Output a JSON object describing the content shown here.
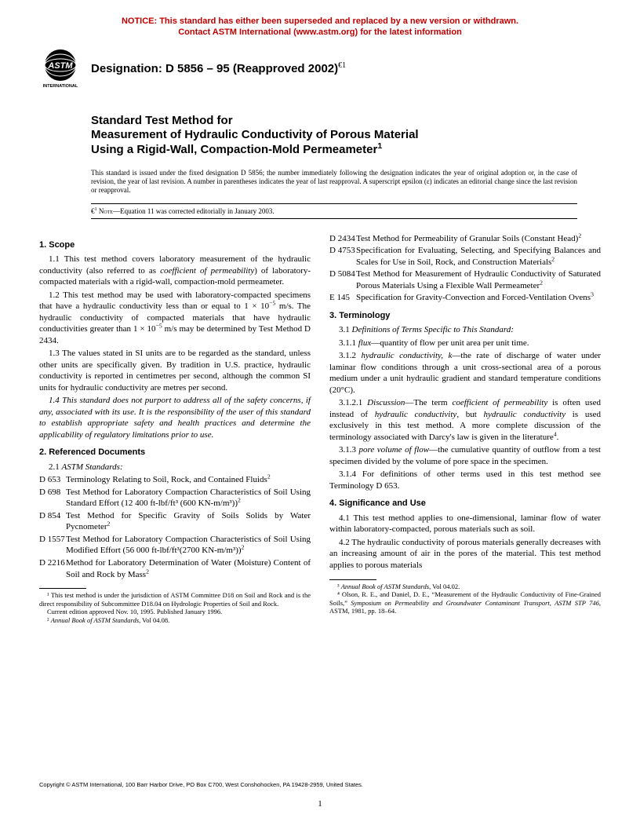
{
  "notice": {
    "line1": "NOTICE: This standard has either been superseded and replaced by a new version or withdrawn.",
    "line2": "Contact ASTM International (www.astm.org) for the latest information",
    "color": "#c00000"
  },
  "logo": {
    "label": "INTERNATIONAL"
  },
  "designation": {
    "prefix": "Designation: D 5856 – 95 (Reapproved 2002)"
  },
  "title": {
    "line1": "Standard Test Method for",
    "line2a": "Measurement of Hydraulic Conductivity of Porous Material",
    "line2b": "Using a Rigid-Wall, Compaction-Mold Permeameter"
  },
  "intro": "This standard is issued under the fixed designation D 5856; the number immediately following the designation indicates the year of original adoption or, in the case of revision, the year of last revision. A number in parentheses indicates the year of last reapproval. A superscript epsilon (ε) indicates an editorial change since the last revision or reapproval.",
  "epsilonNote": "Equation 11 was corrected editorially in January 2003.",
  "sections": {
    "scope": {
      "head": "1. Scope",
      "p11": "1.1 This test method covers laboratory measurement of the hydraulic conductivity (also referred to as ",
      "p11i": "coefficient of permeability",
      "p11b": ") of laboratory-compacted materials with a rigid-wall, compaction-mold permeameter.",
      "p12a": "1.2 This test method may be used with laboratory-compacted specimens that have a hydraulic conductivity less than or equal to 1 × 10",
      "p12b": " m/s. The hydraulic conductivity of compacted materials that have hydraulic conductivities greater than 1 × 10",
      "p12c": " m/s may be determined by Test Method D 2434.",
      "p13": "1.3 The values stated in SI units are to be regarded as the standard, unless other units are specifically given. By tradition in U.S. practice, hydraulic conductivity is reported in centimetres per second, although the common SI units for hydraulic conductivity are metres per second.",
      "p14": "1.4 This standard does not purport to address all of the safety concerns, if any, associated with its use. It is the responsibility of the user of this standard to establish appropriate safety and health practices and determine the applicability of regulatory limitations prior to use."
    },
    "refs": {
      "head": "2. Referenced Documents",
      "sub": "2.1 ",
      "subI": "ASTM Standards:",
      "items": [
        {
          "code": "D 653",
          "text": "Terminology Relating to Soil, Rock, and Contained Fluids",
          "sup": "2"
        },
        {
          "code": "D 698",
          "text": "Test Method for Laboratory Compaction Characteristics of Soil Using Standard Effort (12 400 ft-lbf/ft³ (600 KN-m/m³))",
          "sup": "2"
        },
        {
          "code": "D 854",
          "text": "Test Method for Specific Gravity of Soils Solids by Water Pycnometer",
          "sup": "2"
        },
        {
          "code": "D 1557",
          "text": "Test Method for Laboratory Compaction Characteristics of Soil Using Modified Effort (56 000 ft-lbf/ft³(2700 KN-m/m³))",
          "sup": "2"
        },
        {
          "code": "D 2216",
          "text": "Method for Laboratory Determination of Water (Moisture) Content of Soil and Rock by Mass",
          "sup": "2"
        },
        {
          "code": "D 2434",
          "text": "Test Method for Permeability of Granular Soils (Constant Head)",
          "sup": "2"
        },
        {
          "code": "D 4753",
          "text": "Specification for Evaluating, Selecting, and Specifying Balances and Scales for Use in Soil, Rock, and Construction Materials",
          "sup": "2"
        },
        {
          "code": "D 5084",
          "text": "Test Method for Measurement of Hydraulic Conductivity of Saturated Porous Materials Using a Flexible Wall Permeameter",
          "sup": "2"
        },
        {
          "code": "E 145",
          "text": "Specification for Gravity-Convection and Forced-Ventilation Ovens",
          "sup": "3"
        }
      ]
    },
    "term": {
      "head": "3. Terminology",
      "p31": "3.1 ",
      "p31i": "Definitions of Terms Specific to This Standard:",
      "p311": "3.1.1 ",
      "p311i": "flux",
      "p311t": "—quantity of flow per unit area per unit time.",
      "p312": "3.1.2 ",
      "p312i": "hydraulic conductivity, k",
      "p312t": "—the rate of discharge of water under laminar flow conditions through a unit cross-sectional area of a porous medium under a unit hydraulic gradient and standard temperature conditions (20°C).",
      "p3121a": "3.1.2.1 ",
      "p3121i": "Discussion",
      "p3121b": "—The term ",
      "p3121c": "coefficient of permeability",
      "p3121d": " is often used instead of ",
      "p3121e": "hydraulic conductivity",
      "p3121f": ", but ",
      "p3121g": "hydraulic conductivity",
      "p3121h": " is used exclusively in this test method. A more complete discussion of the terminology associated with Darcy's law is given in the literature",
      "p313": "3.1.3 ",
      "p313i": "pore volume of flow",
      "p313t": "—the cumulative quantity of outflow from a test specimen divided by the volume of pore space in the specimen.",
      "p314": "3.1.4 For definitions of other terms used in this test method see Terminology D 653."
    },
    "sig": {
      "head": "4. Significance and Use",
      "p41": "4.1 This test method applies to one-dimensional, laminar flow of water within laboratory-compacted, porous materials such as soil.",
      "p42": "4.2 The hydraulic conductivity of porous materials generally decreases with an increasing amount of air in the pores of the material. This test method applies to porous materials"
    }
  },
  "footnotes": {
    "left": [
      "¹ This test method is under the jurisdiction of ASTM Committee D18 on Soil and Rock and is the direct responsibility of Subcommittee D18.04 on Hydrologic Properties of Soil and Rock.",
      "Current edition approved Nov. 10, 1995. Published January 1996.",
      "² Annual Book of ASTM Standards, Vol 04.08."
    ],
    "right": [
      "³ Annual Book of ASTM Standards, Vol 04.02.",
      "⁴ Olson, R. E., and Daniel, D. E., “Measurement of the Hydraulic Conductivity of Fine-Grained Soils,” Symposium on Permeability and Groundwater Contaminant Transport, ASTM STP 746, ASTM, 1981, pp. 18–64."
    ]
  },
  "copyright": "Copyright © ASTM International, 100 Barr Harbor Drive, PO Box C700, West Conshohocken, PA 19428-2959, United States.",
  "pageNum": "1"
}
